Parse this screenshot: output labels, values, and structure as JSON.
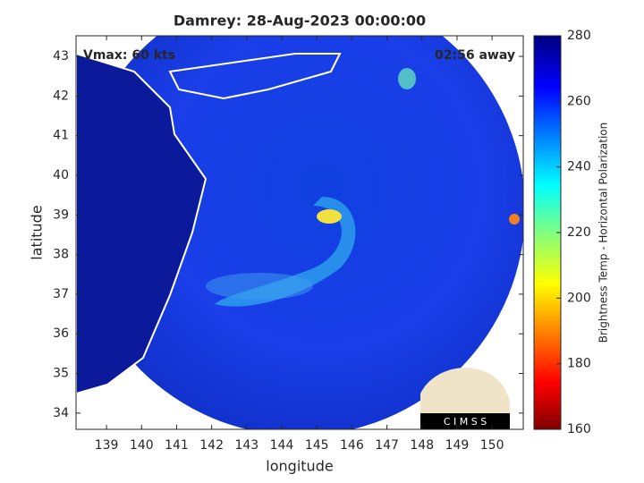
{
  "chart_data": {
    "type": "map",
    "title": "Damrey: 28-Aug-2023 00:00:00",
    "annotations": [
      "Vmax: 60 kts",
      "02:56 away"
    ],
    "xlabel": "longitude",
    "ylabel": "latitude",
    "xlim": [
      138.13,
      150.89
    ],
    "ylim": [
      33.59,
      43.52
    ],
    "xticks": [
      139,
      140,
      141,
      142,
      143,
      144,
      145,
      146,
      147,
      148,
      149,
      150
    ],
    "yticks": [
      34,
      35,
      36,
      37,
      38,
      39,
      40,
      41,
      42,
      43
    ],
    "colorbar": {
      "label": "Brightness Temp - Horizontal Polarization",
      "lim": [
        160,
        280
      ],
      "ticks": [
        160,
        180,
        200,
        220,
        240,
        260,
        280
      ]
    },
    "logo": "C I M S S"
  }
}
